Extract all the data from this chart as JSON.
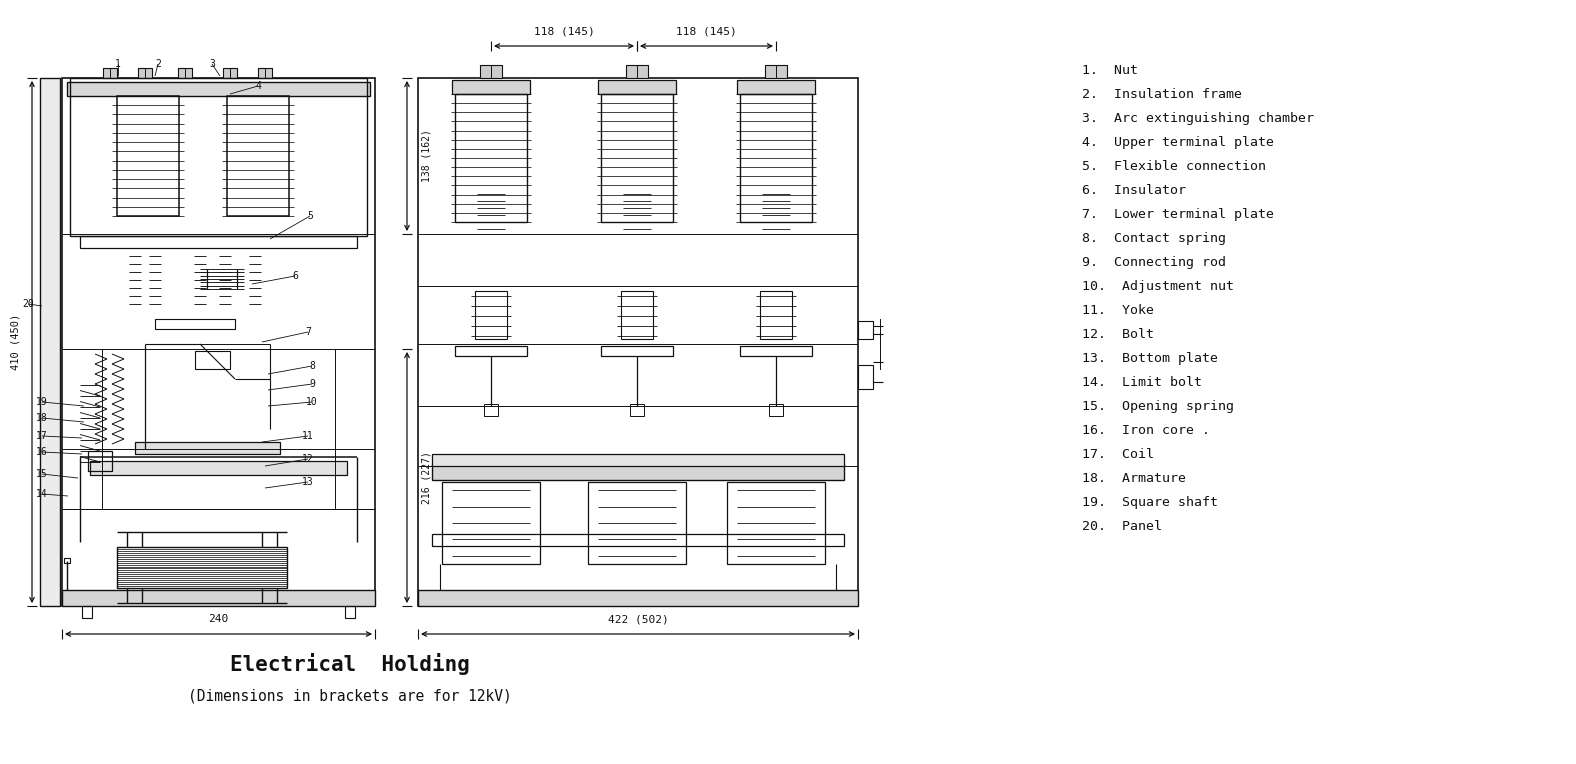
{
  "title": "Electrical  Holding",
  "subtitle": "(Dimensions in brackets are for 12kV)",
  "background_color": "#ffffff",
  "line_color": "#111111",
  "legend_items": [
    "1.  Nut",
    "2.  Insulation frame",
    "3.  Arc extinguishing chamber",
    "4.  Upper terminal plate",
    "5.  Flexible connection",
    "6.  Insulator",
    "7.  Lower terminal plate",
    "8.  Contact spring",
    "9.  Connecting rod",
    "10.  Adjustment nut",
    "11.  Yoke",
    "12.  Bolt",
    "13.  Bottom plate",
    "14.  Limit bolt",
    "15.  Opening spring",
    "16.  Iron core .",
    "17.  Coil",
    "18.  Armature",
    "19.  Square shaft",
    "20.  Panel"
  ],
  "dim_240": "240",
  "dim_422_502": "422 (502)",
  "dim_118_145_left": "118 (145)",
  "dim_118_145_right": "118 (145)",
  "dim_410_450": "410 (450)",
  "dim_138_162": "138 (162)",
  "dim_216_227": "216 (227)"
}
